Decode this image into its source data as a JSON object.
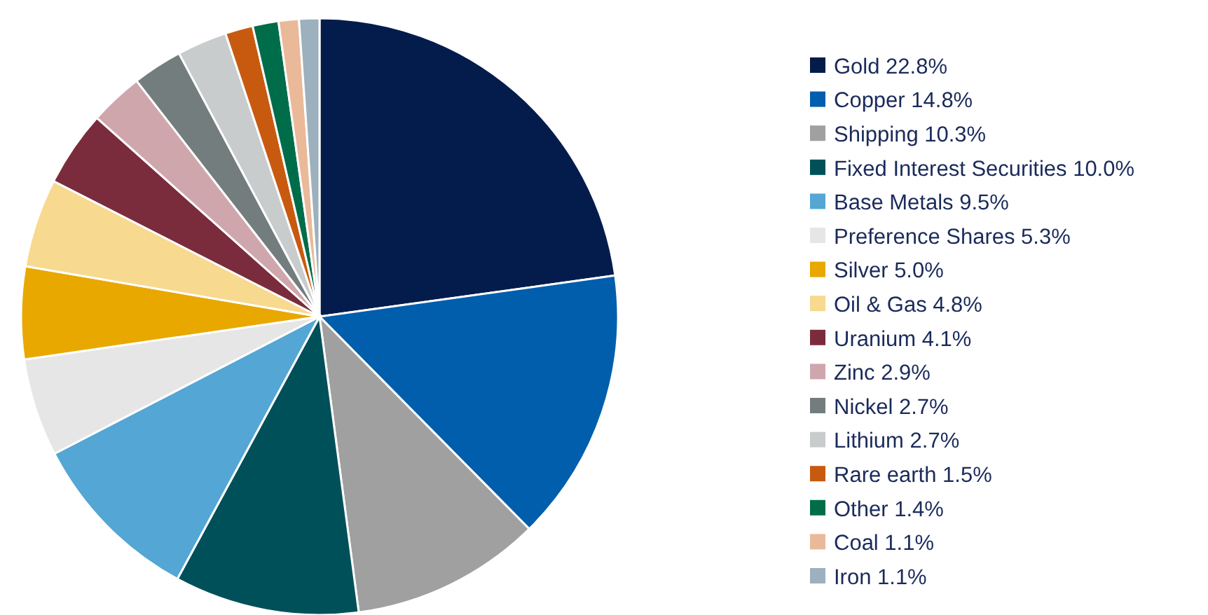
{
  "chart_data": {
    "type": "pie",
    "legend": "right",
    "categories": [
      "Gold 22.8%",
      "Copper 14.8%",
      "Shipping 10.3%",
      "Fixed Interest Securities 10.0%",
      "Base Metals 9.5%",
      "Preference Shares 5.3%",
      "Silver 5.0%",
      "Oil & Gas 4.8%",
      "Uranium 4.1%",
      "Zinc 2.9%",
      "Nickel 2.7%",
      "Lithium 2.7%",
      "Rare earth 1.5%",
      "Other 1.4%",
      "Coal 1.1%",
      "Iron 1.1%"
    ],
    "values": [
      22.8,
      14.8,
      10.3,
      10.0,
      9.5,
      5.3,
      5.0,
      4.8,
      4.1,
      2.9,
      2.7,
      2.7,
      1.5,
      1.4,
      1.1,
      1.1
    ],
    "colors": [
      "#041c4c",
      "#005eac",
      "#a0a0a0",
      "#00505a",
      "#54a6d4",
      "#e6e6e6",
      "#e8a800",
      "#f7d98f",
      "#7a2c3c",
      "#d0a6ad",
      "#737d7d",
      "#c8cccc",
      "#c85a10",
      "#006d4a",
      "#eab99a",
      "#9db0bd"
    ]
  }
}
